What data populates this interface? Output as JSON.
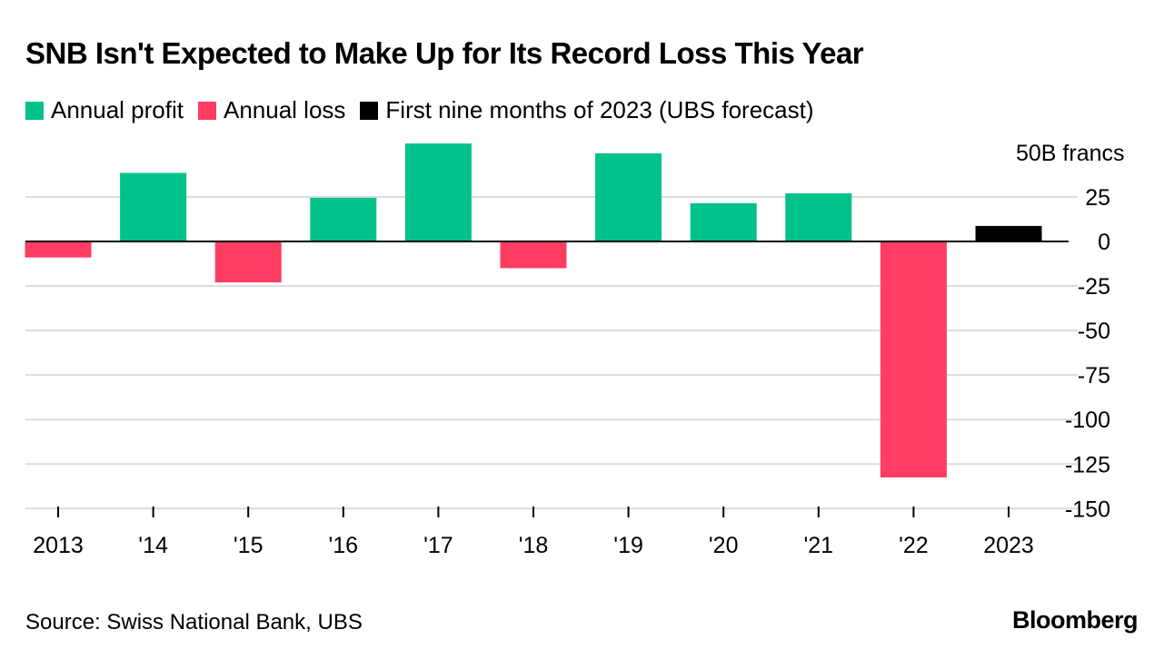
{
  "chart_data": {
    "type": "bar",
    "title": "SNB Isn't Expected to Make Up for Its Record Loss This Year",
    "categories": [
      "2013",
      "'14",
      "'15",
      "'16",
      "'17",
      "'18",
      "'19",
      "'20",
      "'21",
      "'22",
      "2023"
    ],
    "values": [
      -9,
      38.5,
      -23,
      24.5,
      55,
      -15,
      49.5,
      21.5,
      27,
      -132.5,
      8.7
    ],
    "bar_kinds": [
      "loss",
      "profit",
      "loss",
      "profit",
      "profit",
      "loss",
      "profit",
      "profit",
      "profit",
      "loss",
      "forecast"
    ],
    "legend": [
      {
        "key": "profit",
        "label": "Annual profit",
        "color": "#00c28a"
      },
      {
        "key": "loss",
        "label": "Annual loss",
        "color": "#ff3d63"
      },
      {
        "key": "forecast",
        "label": "First nine months of 2023 (UBS forecast)",
        "color": "#000000"
      }
    ],
    "ylabel": "B francs",
    "ylim": [
      -150,
      50
    ],
    "yticks": [
      50,
      25,
      0,
      -25,
      -50,
      -75,
      -100,
      -125,
      -150
    ],
    "ytick_labels": [
      "50B francs",
      "25",
      "0",
      "-25",
      "-50",
      "-75",
      "-100",
      "-125",
      "-150"
    ],
    "grid": true,
    "legend_position": "top-left"
  },
  "footer": {
    "source": "Source: Swiss National Bank, UBS",
    "logo": "Bloomberg"
  }
}
